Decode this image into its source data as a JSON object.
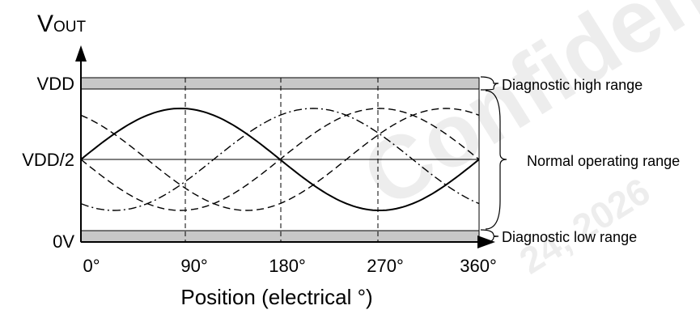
{
  "diagram": {
    "y_axis_label_main": "V",
    "y_axis_label_sub": "OUT",
    "x_axis_title": "Position (electrical °)",
    "y_levels": [
      "VDD",
      "VDD/2",
      "0V"
    ],
    "x_ticks": [
      "0°",
      "90°",
      "180°",
      "270°",
      "360°"
    ],
    "ranges": {
      "high": "Diagnostic high range",
      "normal": "Normal operating range",
      "low": "Diagnostic low range"
    },
    "watermark": {
      "main": "Confidential",
      "date": "24, 2026"
    }
  },
  "chart_data": {
    "type": "line",
    "x_unit": "electrical degrees",
    "xlim": [
      0,
      360
    ],
    "series": [
      {
        "style": "solid",
        "function": "VDD/2 + A·sin(θ)"
      },
      {
        "style": "dashed",
        "function": "VDD/2 + A·sin(θ + 120°)"
      },
      {
        "style": "dash-dot",
        "function": "VDD/2 + A·sin(θ + 240°)"
      },
      {
        "style": "dashed",
        "function": "VDD/2 − A·sin(θ)"
      }
    ]
  }
}
